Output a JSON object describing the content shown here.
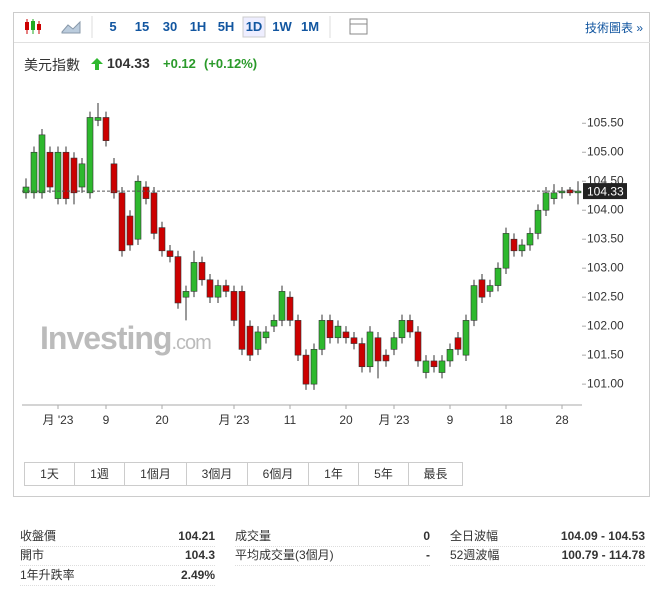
{
  "toolbar": {
    "intervals": [
      "5",
      "15",
      "30",
      "1H",
      "5H",
      "1D",
      "1W",
      "1M"
    ],
    "link": "技術圖表 »"
  },
  "header": {
    "title": "美元指數",
    "price": "104.33",
    "change": "+0.12",
    "change_pct": "(+0.12%)"
  },
  "watermark": {
    "brand": "Investing",
    "suffix": ".com"
  },
  "ranges": [
    "1天",
    "1週",
    "1個月",
    "3個月",
    "6個月",
    "1年",
    "5年",
    "最長"
  ],
  "stats": [
    [
      {
        "label": "收盤價",
        "value": "104.21"
      },
      {
        "label": "開市",
        "value": "104.3"
      },
      {
        "label": "1年升跌率",
        "value": "2.49%"
      }
    ],
    [
      {
        "label": "成交量",
        "value": "0"
      },
      {
        "label": "平均成交量(3個月)",
        "value": "-"
      }
    ],
    [
      {
        "label": "全日波幅",
        "value": "104.09 - 104.53"
      },
      {
        "label": "52週波幅",
        "value": "100.79 - 114.78"
      }
    ]
  ],
  "chart_data": {
    "type": "candlestick",
    "categories": [
      null,
      null,
      null,
      null,
      "月 '23",
      null,
      null,
      null,
      null,
      null,
      "9",
      null,
      null,
      null,
      null,
      null,
      null,
      "20",
      null,
      null,
      null,
      null,
      null,
      null,
      null,
      null,
      "月 '23",
      null,
      null,
      null,
      null,
      null,
      null,
      "11",
      null,
      null,
      null,
      null,
      null,
      null,
      "20",
      null,
      null,
      null,
      null,
      null,
      "月 '23",
      null,
      null,
      null,
      null,
      null,
      null,
      "9",
      null,
      null,
      null,
      null,
      null,
      null,
      "18",
      null,
      null,
      null,
      null,
      null,
      null,
      "28",
      null,
      null
    ],
    "open": [
      104.3,
      104.3,
      104.3,
      105.0,
      104.2,
      105.0,
      104.9,
      104.4,
      104.3,
      105.55,
      105.6,
      104.8,
      104.3,
      103.9,
      103.5,
      104.4,
      104.3,
      103.7,
      103.3,
      103.2,
      102.5,
      102.6,
      103.1,
      102.8,
      102.5,
      102.7,
      102.6,
      102.6,
      102.0,
      101.6,
      101.8,
      102.0,
      102.1,
      102.5,
      102.1,
      101.5,
      101.0,
      101.6,
      102.1,
      101.8,
      101.9,
      101.8,
      101.7,
      101.3,
      101.8,
      101.5,
      101.6,
      101.8,
      102.1,
      101.9,
      101.2,
      101.4,
      101.2,
      101.4,
      101.8,
      101.5,
      102.1,
      102.8,
      102.6,
      102.7,
      103.0,
      103.5,
      103.3,
      103.4,
      103.6,
      104.0,
      104.2,
      104.3,
      104.35,
      104.3
    ],
    "high": [
      104.55,
      105.1,
      105.4,
      105.1,
      105.1,
      105.1,
      105.0,
      104.9,
      105.7,
      105.85,
      105.7,
      104.9,
      104.4,
      104.0,
      104.6,
      104.5,
      104.4,
      103.8,
      103.4,
      103.3,
      102.7,
      103.3,
      103.2,
      102.9,
      102.8,
      102.8,
      102.7,
      102.7,
      102.1,
      102.0,
      102.0,
      102.2,
      102.7,
      102.6,
      102.2,
      101.6,
      101.7,
      102.2,
      102.2,
      102.1,
      102.0,
      101.9,
      101.8,
      102.0,
      101.9,
      101.6,
      101.9,
      102.2,
      102.2,
      102.0,
      101.5,
      101.5,
      101.5,
      101.7,
      101.9,
      102.2,
      102.8,
      102.9,
      102.8,
      103.1,
      103.7,
      103.6,
      103.5,
      103.7,
      104.1,
      104.4,
      104.45,
      104.4,
      104.4,
      104.5
    ],
    "low": [
      104.2,
      104.2,
      104.2,
      104.3,
      104.1,
      104.1,
      104.1,
      104.3,
      104.2,
      105.45,
      105.1,
      104.2,
      103.2,
      103.3,
      103.4,
      104.1,
      103.5,
      103.2,
      103.1,
      102.3,
      102.1,
      102.5,
      102.7,
      102.4,
      102.4,
      102.5,
      102.0,
      101.5,
      101.4,
      101.5,
      101.7,
      101.9,
      102.0,
      102.0,
      101.4,
      100.9,
      100.9,
      101.5,
      101.7,
      101.7,
      101.7,
      101.6,
      101.2,
      101.2,
      101.1,
      101.3,
      101.5,
      101.7,
      101.8,
      101.3,
      101.1,
      101.2,
      101.1,
      101.3,
      101.5,
      101.4,
      102.0,
      102.4,
      102.5,
      102.6,
      102.9,
      103.2,
      103.2,
      103.3,
      103.5,
      103.9,
      104.1,
      104.2,
      104.25,
      104.1
    ],
    "close": [
      104.4,
      105.0,
      105.3,
      104.4,
      105.0,
      104.2,
      104.3,
      104.8,
      105.6,
      105.6,
      105.2,
      104.3,
      103.3,
      103.4,
      104.5,
      104.2,
      103.6,
      103.3,
      103.2,
      102.4,
      102.6,
      103.1,
      102.8,
      102.5,
      102.7,
      102.6,
      102.1,
      101.6,
      101.5,
      101.9,
      101.9,
      102.1,
      102.6,
      102.1,
      101.5,
      101.0,
      101.6,
      102.1,
      101.8,
      102.0,
      101.8,
      101.7,
      101.3,
      101.9,
      101.4,
      101.4,
      101.8,
      102.1,
      101.9,
      101.4,
      101.4,
      101.3,
      101.4,
      101.6,
      101.6,
      102.1,
      102.7,
      102.5,
      102.7,
      103.0,
      103.6,
      103.3,
      103.4,
      103.6,
      104.0,
      104.3,
      104.3,
      104.33,
      104.3,
      104.33
    ],
    "up_color": "#2eb82e",
    "down_color": "#cc0000",
    "ylim": [
      100.64,
      106.16
    ],
    "yticks": [
      {
        "value": 101,
        "label": "101.00"
      },
      {
        "value": 101.5,
        "label": "101.50"
      },
      {
        "value": 102,
        "label": "102.00"
      },
      {
        "value": 102.5,
        "label": "102.50"
      },
      {
        "value": 103,
        "label": "103.00"
      },
      {
        "value": 103.5,
        "label": "103.50"
      },
      {
        "value": 104,
        "label": "104.00"
      },
      {
        "value": 104.5,
        "label": "104.50"
      },
      {
        "value": 105,
        "label": "105.00"
      },
      {
        "value": 105.5,
        "label": "105.50"
      }
    ],
    "last_value": 104.33
  }
}
